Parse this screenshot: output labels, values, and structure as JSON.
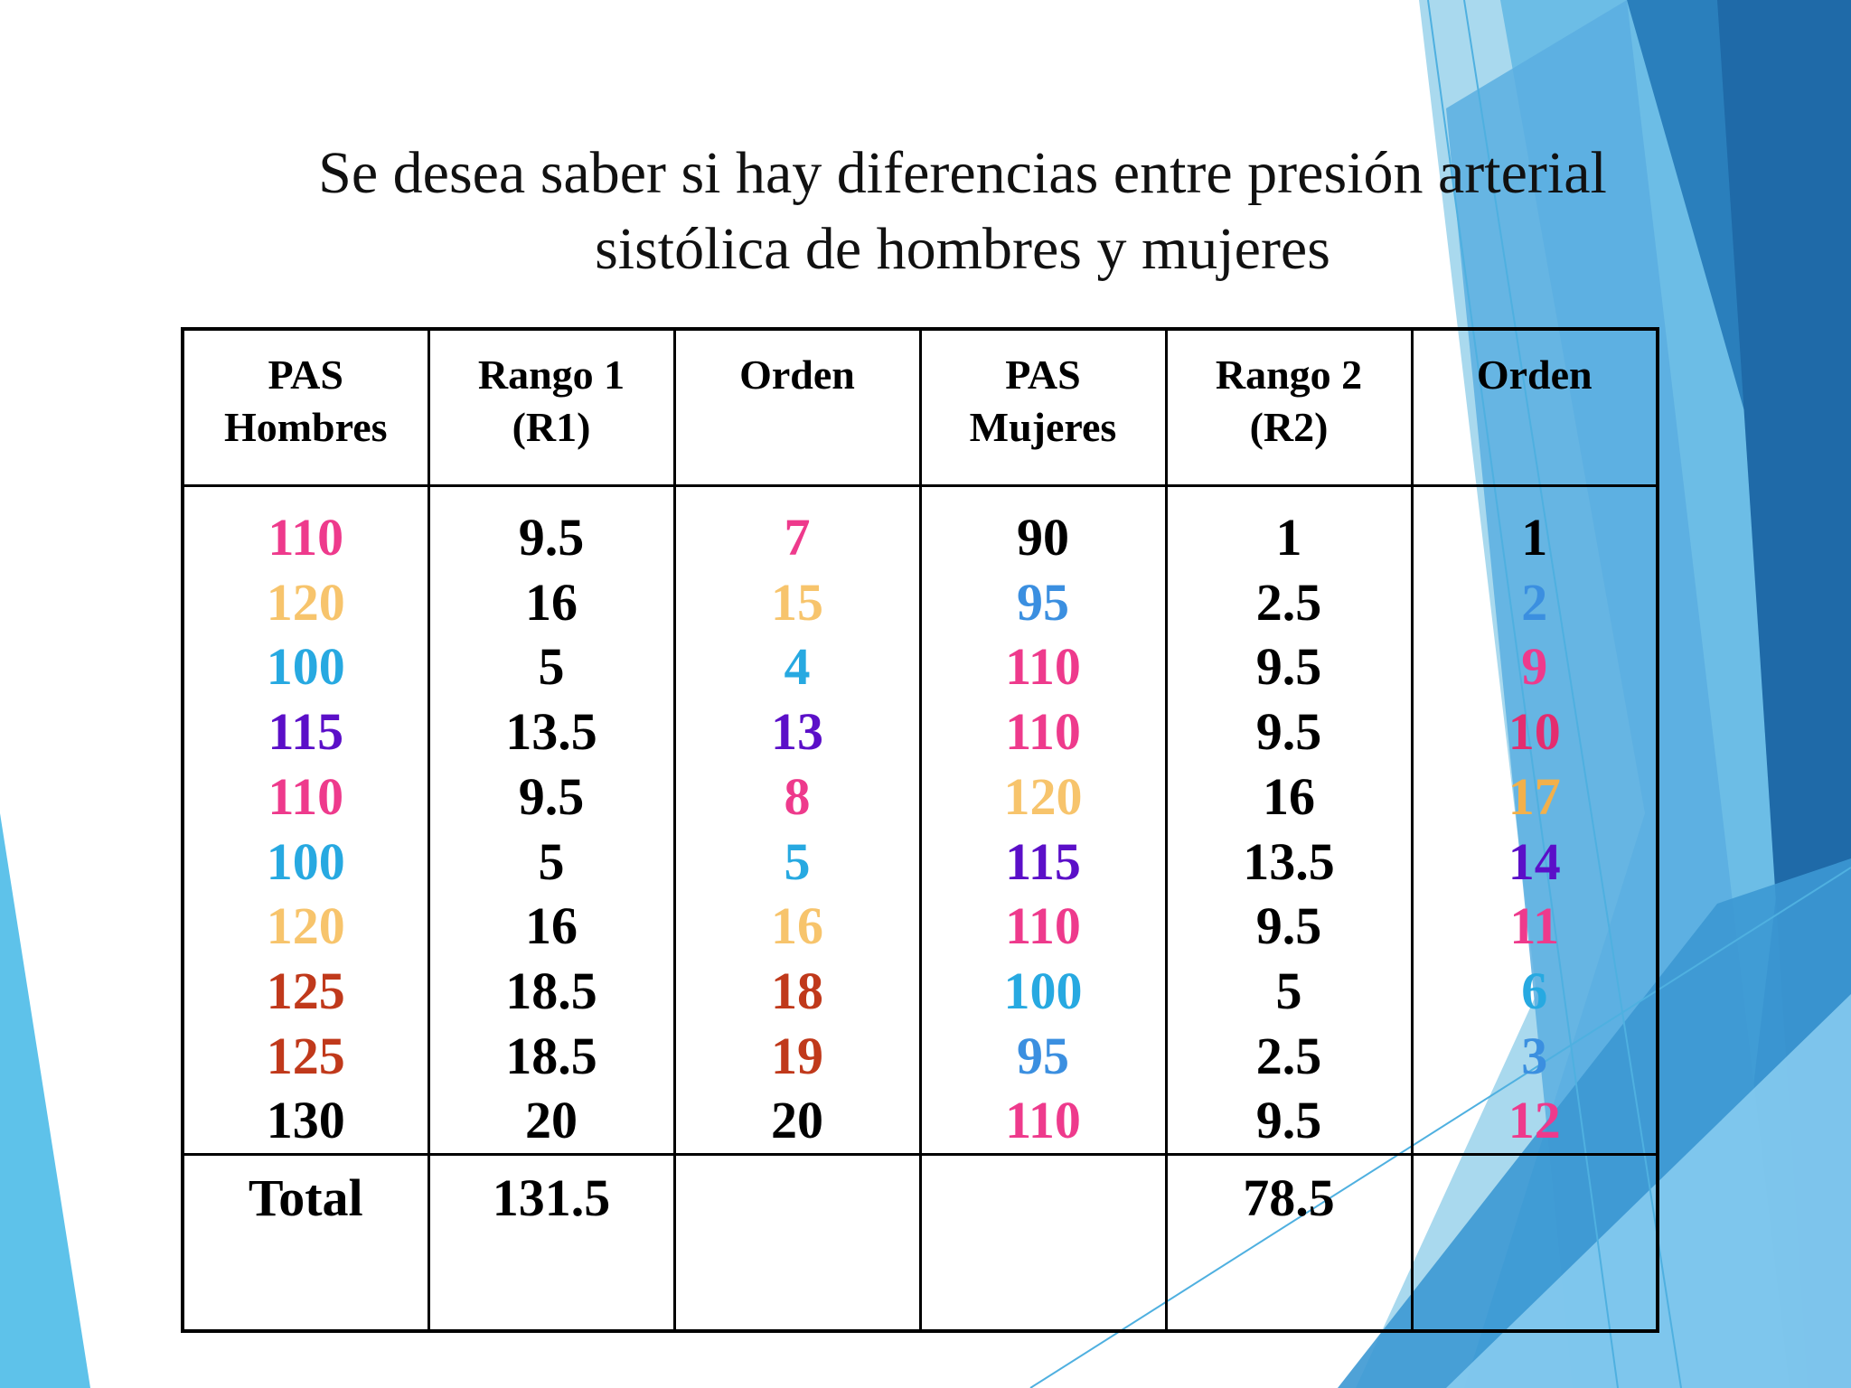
{
  "title": {
    "line1": "Se desea saber si hay diferencias entre presión arterial",
    "line2": "sistólica de hombres y mujeres"
  },
  "colors": {
    "pink": "#ee3a8c",
    "gold": "#f7c46c",
    "blue": "#27a9e1",
    "purple": "#5b0fc8",
    "rust": "#c0391b",
    "black": "#000000",
    "lightblue": "#3b8fe0",
    "orange": "#f2b04a",
    "red": "#e32d6f"
  },
  "table": {
    "headers": [
      {
        "line1": "PAS",
        "line2": "Hombres"
      },
      {
        "line1": "Rango 1",
        "line2": "(R1)"
      },
      {
        "line1": "Orden",
        "line2": ""
      },
      {
        "line1": "PAS",
        "line2": "Mujeres"
      },
      {
        "line1": "Rango 2",
        "line2": "(R2)"
      },
      {
        "line1": "Orden",
        "line2": ""
      }
    ],
    "columns": [
      [
        {
          "v": "110",
          "c": "#ee3a8c"
        },
        {
          "v": "120",
          "c": "#f7c46c"
        },
        {
          "v": "100",
          "c": "#27a9e1"
        },
        {
          "v": "115",
          "c": "#5b0fc8"
        },
        {
          "v": "110",
          "c": "#ee3a8c"
        },
        {
          "v": "100",
          "c": "#27a9e1"
        },
        {
          "v": "120",
          "c": "#f7c46c"
        },
        {
          "v": "125",
          "c": "#c0391b"
        },
        {
          "v": "125",
          "c": "#c0391b"
        },
        {
          "v": "130",
          "c": "#000000"
        }
      ],
      [
        {
          "v": "9.5",
          "c": "#000000"
        },
        {
          "v": "16",
          "c": "#000000"
        },
        {
          "v": "5",
          "c": "#000000"
        },
        {
          "v": "13.5",
          "c": "#000000"
        },
        {
          "v": "9.5",
          "c": "#000000"
        },
        {
          "v": "5",
          "c": "#000000"
        },
        {
          "v": "16",
          "c": "#000000"
        },
        {
          "v": "18.5",
          "c": "#000000"
        },
        {
          "v": "18.5",
          "c": "#000000"
        },
        {
          "v": "20",
          "c": "#000000"
        }
      ],
      [
        {
          "v": "7",
          "c": "#ee3a8c"
        },
        {
          "v": "15",
          "c": "#f7c46c"
        },
        {
          "v": "4",
          "c": "#27a9e1"
        },
        {
          "v": "13",
          "c": "#5b0fc8"
        },
        {
          "v": "8",
          "c": "#ee3a8c"
        },
        {
          "v": "5",
          "c": "#27a9e1"
        },
        {
          "v": "16",
          "c": "#f7c46c"
        },
        {
          "v": "18",
          "c": "#c0391b"
        },
        {
          "v": "19",
          "c": "#c0391b"
        },
        {
          "v": "20",
          "c": "#000000"
        }
      ],
      [
        {
          "v": "90",
          "c": "#000000"
        },
        {
          "v": "95",
          "c": "#3b8fe0"
        },
        {
          "v": "110",
          "c": "#ee3a8c"
        },
        {
          "v": "110",
          "c": "#ee3a8c"
        },
        {
          "v": "120",
          "c": "#f7c46c"
        },
        {
          "v": "115",
          "c": "#5b0fc8"
        },
        {
          "v": "110",
          "c": "#ee3a8c"
        },
        {
          "v": "100",
          "c": "#27a9e1"
        },
        {
          "v": "95",
          "c": "#3b8fe0"
        },
        {
          "v": "110",
          "c": "#ee3a8c"
        }
      ],
      [
        {
          "v": "1",
          "c": "#000000"
        },
        {
          "v": "2.5",
          "c": "#000000"
        },
        {
          "v": "9.5",
          "c": "#000000"
        },
        {
          "v": "9.5",
          "c": "#000000"
        },
        {
          "v": "16",
          "c": "#000000"
        },
        {
          "v": "13.5",
          "c": "#000000"
        },
        {
          "v": "9.5",
          "c": "#000000"
        },
        {
          "v": "5",
          "c": "#000000"
        },
        {
          "v": "2.5",
          "c": "#000000"
        },
        {
          "v": "9.5",
          "c": "#000000"
        }
      ],
      [
        {
          "v": "1",
          "c": "#000000"
        },
        {
          "v": "2",
          "c": "#3b8fe0"
        },
        {
          "v": "9",
          "c": "#ee3a8c"
        },
        {
          "v": "10",
          "c": "#e32d6f"
        },
        {
          "v": "17",
          "c": "#f2b04a"
        },
        {
          "v": "14",
          "c": "#5b0fc8"
        },
        {
          "v": "11",
          "c": "#ee3a8c"
        },
        {
          "v": "6",
          "c": "#27a9e1"
        },
        {
          "v": "3",
          "c": "#3b8fe0"
        },
        {
          "v": "12",
          "c": "#ee3a8c"
        }
      ]
    ],
    "totals": [
      "Total",
      "131.5",
      "",
      "",
      "78.5",
      ""
    ]
  }
}
